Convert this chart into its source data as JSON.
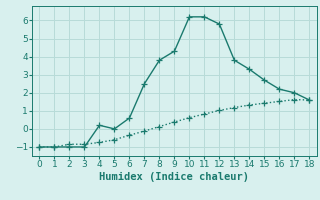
{
  "line1_x": [
    0,
    1,
    2,
    3,
    4,
    5,
    6,
    7,
    8,
    9,
    10,
    11,
    12,
    13,
    14,
    15,
    16,
    17,
    18
  ],
  "line1_y": [
    -1,
    -1,
    -1,
    -1,
    0.2,
    0.0,
    0.6,
    2.5,
    3.8,
    4.3,
    6.2,
    6.2,
    5.8,
    3.8,
    3.3,
    2.7,
    2.2,
    2.0,
    1.6
  ],
  "line2_x": [
    0,
    1,
    2,
    3,
    4,
    5,
    6,
    7,
    8,
    9,
    10,
    11,
    12,
    13,
    14,
    15,
    16,
    17,
    18
  ],
  "line2_y": [
    -1,
    -1,
    -0.85,
    -0.85,
    -0.75,
    -0.6,
    -0.35,
    -0.12,
    0.13,
    0.38,
    0.62,
    0.82,
    1.02,
    1.18,
    1.32,
    1.42,
    1.52,
    1.62,
    1.6
  ],
  "line_color": "#1a7a6e",
  "bg_color": "#d8f0ee",
  "grid_color": "#b8dbd8",
  "xlabel": "Humidex (Indice chaleur)",
  "xlim": [
    -0.5,
    18.5
  ],
  "ylim": [
    -1.5,
    6.8
  ],
  "xticks": [
    0,
    1,
    2,
    3,
    4,
    5,
    6,
    7,
    8,
    9,
    10,
    11,
    12,
    13,
    14,
    15,
    16,
    17,
    18
  ],
  "yticks": [
    -1,
    0,
    1,
    2,
    3,
    4,
    5,
    6
  ],
  "marker": "+",
  "markersize": 4,
  "linewidth": 1.0,
  "font_size": 7.5
}
